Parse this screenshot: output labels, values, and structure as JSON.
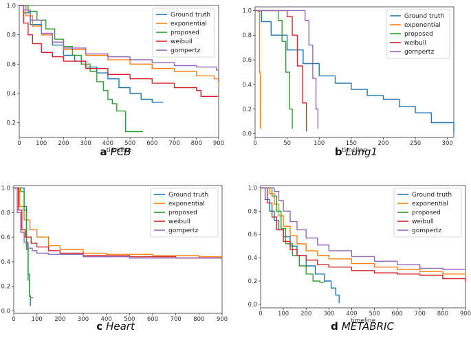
{
  "colors": {
    "Ground truth": "#1f77b4",
    "exponential": "#ff7f0e",
    "proposed": "#2ca02c",
    "weibull": "#d62728",
    "gompertz": "#9467bd"
  },
  "chart_data": [
    {
      "type": "line",
      "caption_letter": "a",
      "caption_name": "PCB",
      "xlabel": "timeline",
      "xlim": [
        0,
        900
      ],
      "ylim": [
        0.1,
        1.0
      ],
      "xticks": [
        0,
        100,
        200,
        300,
        400,
        500,
        600,
        700,
        800,
        900
      ],
      "yticks": [
        0.2,
        0.4,
        0.6,
        0.8,
        1.0
      ],
      "ytick_labels": [
        "0.2",
        "0.4",
        "0.6",
        "0.8",
        "1.0"
      ],
      "legend": [
        "Ground truth",
        "exponential",
        "proposed",
        "weibull",
        "gompertz"
      ],
      "legend_position": "top-right",
      "series": [
        {
          "name": "Ground truth",
          "x": [
            0,
            20,
            50,
            100,
            150,
            200,
            250,
            300,
            350,
            400,
            450,
            500,
            550,
            600,
            650
          ],
          "y": [
            1.0,
            0.95,
            0.87,
            0.8,
            0.73,
            0.66,
            0.62,
            0.58,
            0.54,
            0.5,
            0.44,
            0.4,
            0.36,
            0.34,
            0.34
          ]
        },
        {
          "name": "exponential",
          "x": [
            0,
            30,
            60,
            100,
            150,
            200,
            300,
            400,
            500,
            600,
            700,
            800,
            880,
            900
          ],
          "y": [
            1.0,
            0.93,
            0.86,
            0.8,
            0.75,
            0.7,
            0.66,
            0.63,
            0.6,
            0.57,
            0.55,
            0.52,
            0.5,
            0.45
          ]
        },
        {
          "name": "proposed",
          "x": [
            0,
            40,
            80,
            120,
            160,
            200,
            240,
            280,
            320,
            350,
            380,
            400,
            420,
            440,
            480,
            560
          ],
          "y": [
            1.0,
            0.96,
            0.9,
            0.84,
            0.77,
            0.72,
            0.66,
            0.6,
            0.55,
            0.48,
            0.42,
            0.36,
            0.33,
            0.28,
            0.14,
            0.14
          ]
        },
        {
          "name": "weibull",
          "x": [
            0,
            20,
            40,
            60,
            100,
            150,
            200,
            300,
            400,
            500,
            600,
            700,
            800,
            820,
            900
          ],
          "y": [
            1.0,
            0.88,
            0.8,
            0.74,
            0.68,
            0.65,
            0.62,
            0.57,
            0.53,
            0.5,
            0.47,
            0.44,
            0.42,
            0.38,
            0.38
          ]
        },
        {
          "name": "gompertz",
          "x": [
            0,
            20,
            50,
            100,
            150,
            200,
            300,
            400,
            500,
            600,
            700,
            800,
            890,
            900
          ],
          "y": [
            1.0,
            0.97,
            0.9,
            0.81,
            0.75,
            0.71,
            0.67,
            0.65,
            0.63,
            0.61,
            0.59,
            0.58,
            0.56,
            0.48
          ]
        }
      ]
    },
    {
      "type": "line",
      "caption_letter": "b",
      "caption_name": "Lung1",
      "xlabel": "timeline",
      "xlim": [
        0,
        310
      ],
      "ylim": [
        -0.03,
        1.03
      ],
      "xticks": [
        0,
        50,
        100,
        150,
        200,
        250,
        300
      ],
      "yticks": [
        0.0,
        0.2,
        0.4,
        0.6,
        0.8,
        1.0
      ],
      "ytick_labels": [
        "0.0",
        "0.2",
        "0.4",
        "0.6",
        "0.8",
        "1.0"
      ],
      "legend": [
        "Ground truth",
        "exponential",
        "proposed",
        "weibull",
        "gompertz"
      ],
      "legend_position": "top-right",
      "series": [
        {
          "name": "Ground truth",
          "x": [
            0,
            10,
            25,
            50,
            75,
            100,
            125,
            150,
            175,
            200,
            225,
            250,
            275,
            300,
            310
          ],
          "y": [
            1.0,
            0.91,
            0.8,
            0.68,
            0.57,
            0.47,
            0.41,
            0.36,
            0.31,
            0.28,
            0.22,
            0.17,
            0.09,
            0.09,
            0.0
          ]
        },
        {
          "name": "exponential",
          "x": [
            0,
            5,
            7,
            8,
            8
          ],
          "y": [
            1.0,
            0.99,
            0.5,
            0.1,
            0.04
          ]
        },
        {
          "name": "proposed",
          "x": [
            0,
            32,
            36,
            42,
            48,
            54,
            58
          ],
          "y": [
            1.0,
            1.0,
            0.92,
            0.75,
            0.5,
            0.2,
            0.04
          ]
        },
        {
          "name": "weibull",
          "x": [
            0,
            44,
            50,
            58,
            66,
            74,
            80
          ],
          "y": [
            1.0,
            1.0,
            0.95,
            0.8,
            0.55,
            0.25,
            0.02
          ]
        },
        {
          "name": "gompertz",
          "x": [
            0,
            72,
            78,
            84,
            90,
            95,
            98
          ],
          "y": [
            1.0,
            1.0,
            0.92,
            0.72,
            0.45,
            0.2,
            0.04
          ]
        }
      ]
    },
    {
      "type": "line",
      "caption_letter": "c",
      "caption_name": "Heart",
      "xlabel": "",
      "xlim": [
        0,
        900
      ],
      "ylim": [
        -0.02,
        1.02
      ],
      "xticks": [
        0,
        100,
        200,
        300,
        400,
        500,
        600,
        700,
        800,
        900
      ],
      "yticks": [
        0.0,
        0.2,
        0.4,
        0.6,
        0.8,
        1.0
      ],
      "ytick_labels": [
        "0.0",
        "0.2",
        "0.4",
        "0.6",
        "0.8",
        "1.0"
      ],
      "legend": [
        "Ground truth",
        "exponential",
        "proposed",
        "weibull",
        "gompertz"
      ],
      "legend_position": "top-right",
      "series": [
        {
          "name": "Ground truth",
          "x": [
            0,
            30,
            45,
            55,
            62,
            68,
            72
          ],
          "y": [
            1.0,
            1.0,
            0.85,
            0.55,
            0.3,
            0.12,
            0.04
          ]
        },
        {
          "name": "exponential",
          "x": [
            0,
            25,
            45,
            70,
            100,
            150,
            200,
            300,
            400,
            600,
            800,
            900
          ],
          "y": [
            1.0,
            0.85,
            0.74,
            0.66,
            0.6,
            0.53,
            0.5,
            0.47,
            0.46,
            0.45,
            0.44,
            0.43
          ]
        },
        {
          "name": "proposed",
          "x": [
            0,
            30,
            45,
            55,
            62,
            68,
            72,
            85
          ],
          "y": [
            1.0,
            0.97,
            0.82,
            0.5,
            0.25,
            0.12,
            0.11,
            0.11
          ]
        },
        {
          "name": "weibull",
          "x": [
            0,
            20,
            35,
            50,
            75,
            100,
            150,
            200,
            300,
            500,
            700,
            900
          ],
          "y": [
            1.0,
            0.82,
            0.66,
            0.6,
            0.55,
            0.52,
            0.49,
            0.47,
            0.45,
            0.44,
            0.43,
            0.43
          ]
        },
        {
          "name": "gompertz",
          "x": [
            0,
            15,
            30,
            45,
            60,
            80,
            100,
            150,
            300,
            500,
            900
          ],
          "y": [
            1.0,
            0.8,
            0.64,
            0.56,
            0.51,
            0.49,
            0.47,
            0.46,
            0.44,
            0.43,
            0.43
          ]
        }
      ]
    },
    {
      "type": "line",
      "caption_letter": "d",
      "caption_name": "METABRIC",
      "xlabel": "timeline",
      "xlim": [
        0,
        900
      ],
      "ylim": [
        -0.03,
        1.02
      ],
      "xticks": [
        0,
        100,
        200,
        300,
        400,
        500,
        600,
        700,
        800,
        900
      ],
      "yticks": [
        0.0,
        0.2,
        0.4,
        0.6,
        0.8,
        1.0
      ],
      "ytick_labels": [
        "0.0",
        "0.2",
        "0.4",
        "0.6",
        "0.8",
        "1.0"
      ],
      "legend": [
        "Ground truth",
        "exponential",
        "proposed",
        "weibull",
        "gompertz"
      ],
      "legend_position": "top-right",
      "series": [
        {
          "name": "Ground truth",
          "x": [
            0,
            20,
            40,
            60,
            80,
            100,
            130,
            160,
            200,
            240,
            280,
            310,
            330,
            345
          ],
          "y": [
            1.0,
            0.9,
            0.8,
            0.72,
            0.64,
            0.58,
            0.5,
            0.42,
            0.33,
            0.26,
            0.2,
            0.14,
            0.08,
            0.01
          ]
        },
        {
          "name": "exponential",
          "x": [
            0,
            40,
            60,
            80,
            100,
            130,
            160,
            200,
            250,
            300,
            400,
            500,
            600,
            700,
            800,
            900
          ],
          "y": [
            1.0,
            0.95,
            0.86,
            0.76,
            0.67,
            0.59,
            0.52,
            0.46,
            0.42,
            0.39,
            0.35,
            0.32,
            0.3,
            0.28,
            0.26,
            0.25
          ]
        },
        {
          "name": "proposed",
          "x": [
            0,
            50,
            70,
            90,
            110,
            140,
            170,
            200,
            230,
            260,
            280
          ],
          "y": [
            1.0,
            0.93,
            0.8,
            0.65,
            0.52,
            0.42,
            0.33,
            0.26,
            0.2,
            0.19,
            0.19
          ]
        },
        {
          "name": "weibull",
          "x": [
            0,
            30,
            50,
            70,
            100,
            130,
            160,
            200,
            250,
            300,
            400,
            500,
            600,
            700,
            800,
            900
          ],
          "y": [
            1.0,
            0.87,
            0.75,
            0.64,
            0.54,
            0.47,
            0.42,
            0.38,
            0.34,
            0.32,
            0.29,
            0.27,
            0.26,
            0.25,
            0.22,
            0.19
          ]
        },
        {
          "name": "gompertz",
          "x": [
            0,
            60,
            80,
            100,
            130,
            160,
            200,
            250,
            300,
            400,
            500,
            600,
            700,
            800,
            900
          ],
          "y": [
            1.0,
            0.97,
            0.89,
            0.8,
            0.71,
            0.64,
            0.57,
            0.51,
            0.46,
            0.41,
            0.37,
            0.34,
            0.31,
            0.3,
            0.3
          ]
        }
      ]
    }
  ]
}
